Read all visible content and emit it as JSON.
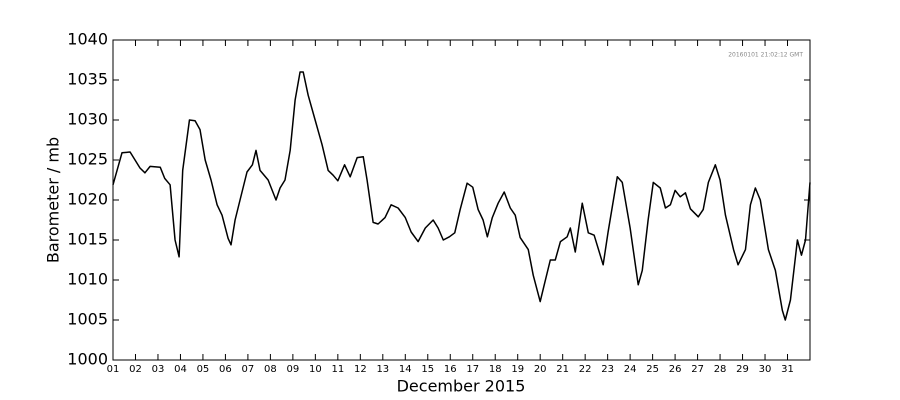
{
  "chart_data": {
    "type": "line",
    "annotation": "20160101 21:02:12 GMT",
    "xlabel": "December 2015",
    "ylabel": "Barometer / mb",
    "color": "#000000",
    "xlim": [
      1,
      32
    ],
    "ylim": [
      1000,
      1040
    ],
    "yticks": [
      1000,
      1005,
      1010,
      1015,
      1020,
      1025,
      1030,
      1035,
      1040
    ],
    "xticks": [
      {
        "value": 1,
        "label": "01"
      },
      {
        "value": 2,
        "label": "02"
      },
      {
        "value": 3,
        "label": "03"
      },
      {
        "value": 4,
        "label": "04"
      },
      {
        "value": 5,
        "label": "05"
      },
      {
        "value": 6,
        "label": "06"
      },
      {
        "value": 7,
        "label": "07"
      },
      {
        "value": 8,
        "label": "08"
      },
      {
        "value": 9,
        "label": "09"
      },
      {
        "value": 10,
        "label": "10"
      },
      {
        "value": 11,
        "label": "11"
      },
      {
        "value": 12,
        "label": "12"
      },
      {
        "value": 13,
        "label": "13"
      },
      {
        "value": 14,
        "label": "14"
      },
      {
        "value": 15,
        "label": "15"
      },
      {
        "value": 16,
        "label": "16"
      },
      {
        "value": 17,
        "label": "17"
      },
      {
        "value": 18,
        "label": "18"
      },
      {
        "value": 19,
        "label": "19"
      },
      {
        "value": 20,
        "label": "20"
      },
      {
        "value": 21,
        "label": "21"
      },
      {
        "value": 22,
        "label": "22"
      },
      {
        "value": 23,
        "label": "23"
      },
      {
        "value": 24,
        "label": "24"
      },
      {
        "value": 25,
        "label": "25"
      },
      {
        "value": 26,
        "label": "26"
      },
      {
        "value": 27,
        "label": "27"
      },
      {
        "value": 28,
        "label": "28"
      },
      {
        "value": 29,
        "label": "29"
      },
      {
        "value": 30,
        "label": "30"
      },
      {
        "value": 31,
        "label": "31"
      }
    ],
    "x": [
      1.0,
      1.4,
      1.76,
      2.2,
      2.42,
      2.65,
      3.1,
      3.3,
      3.54,
      3.76,
      3.94,
      4.1,
      4.4,
      4.65,
      4.87,
      5.1,
      5.36,
      5.63,
      5.85,
      6.12,
      6.25,
      6.43,
      6.65,
      6.96,
      7.2,
      7.36,
      7.54,
      7.9,
      8.25,
      8.43,
      8.65,
      8.88,
      9.1,
      9.32,
      9.46,
      9.68,
      9.99,
      10.3,
      10.57,
      10.79,
      11.0,
      11.3,
      11.55,
      11.86,
      12.13,
      12.3,
      12.57,
      12.79,
      13.1,
      13.37,
      13.68,
      14.0,
      14.26,
      14.57,
      14.89,
      15.24,
      15.46,
      15.69,
      15.96,
      16.2,
      16.44,
      16.75,
      17.0,
      17.24,
      17.46,
      17.65,
      17.87,
      18.13,
      18.4,
      18.67,
      18.89,
      19.11,
      19.47,
      19.69,
      20.0,
      20.18,
      20.45,
      20.67,
      20.9,
      21.2,
      21.34,
      21.56,
      21.87,
      22.14,
      22.4,
      22.8,
      23.02,
      23.43,
      23.65,
      24.0,
      24.36,
      24.54,
      24.8,
      25.03,
      25.34,
      25.57,
      25.79,
      26.0,
      26.23,
      26.46,
      26.68,
      27.03,
      27.25,
      27.48,
      27.79,
      28.0,
      28.24,
      28.6,
      28.8,
      29.13,
      29.35,
      29.57,
      29.79,
      30.15,
      30.46,
      30.77,
      30.9,
      31.13,
      31.44,
      31.62,
      31.8,
      32.0
    ],
    "values": [
      1021.9,
      1025.9,
      1026,
      1024,
      1023.4,
      1024.2,
      1024.1,
      1022.7,
      1021.9,
      1015,
      1012.9,
      1023.7,
      1030,
      1029.9,
      1028.8,
      1025,
      1022.5,
      1019.4,
      1018.1,
      1015.2,
      1014.4,
      1017.5,
      1020,
      1023.5,
      1024.4,
      1026.2,
      1023.7,
      1022.5,
      1020,
      1021.5,
      1022.5,
      1026.2,
      1032.5,
      1036,
      1036,
      1033.1,
      1030,
      1026.9,
      1023.7,
      1023.1,
      1022.4,
      1024.4,
      1022.9,
      1025.3,
      1025.4,
      1022.5,
      1017.2,
      1017,
      1017.8,
      1019.4,
      1019,
      1017.8,
      1016,
      1014.8,
      1016.5,
      1017.5,
      1016.5,
      1015,
      1015.4,
      1015.9,
      1018.8,
      1022.1,
      1021.6,
      1018.8,
      1017.5,
      1015.4,
      1017.8,
      1019.6,
      1021,
      1019,
      1018.1,
      1015.3,
      1013.8,
      1010.6,
      1007.3,
      1009.4,
      1012.5,
      1012.5,
      1014.8,
      1015.4,
      1016.5,
      1013.5,
      1019.6,
      1015.9,
      1015.6,
      1011.9,
      1016,
      1022.9,
      1022.2,
      1016.5,
      1009.4,
      1011.2,
      1017.5,
      1022.2,
      1021.5,
      1019,
      1019.4,
      1021.2,
      1020.4,
      1020.9,
      1018.9,
      1017.9,
      1018.8,
      1022.2,
      1024.4,
      1022.5,
      1018.1,
      1013.8,
      1011.9,
      1013.8,
      1019.4,
      1021.5,
      1020,
      1013.8,
      1011.2,
      1006.2,
      1005,
      1007.5,
      1015,
      1013.1,
      1015,
      1022.2
    ]
  }
}
